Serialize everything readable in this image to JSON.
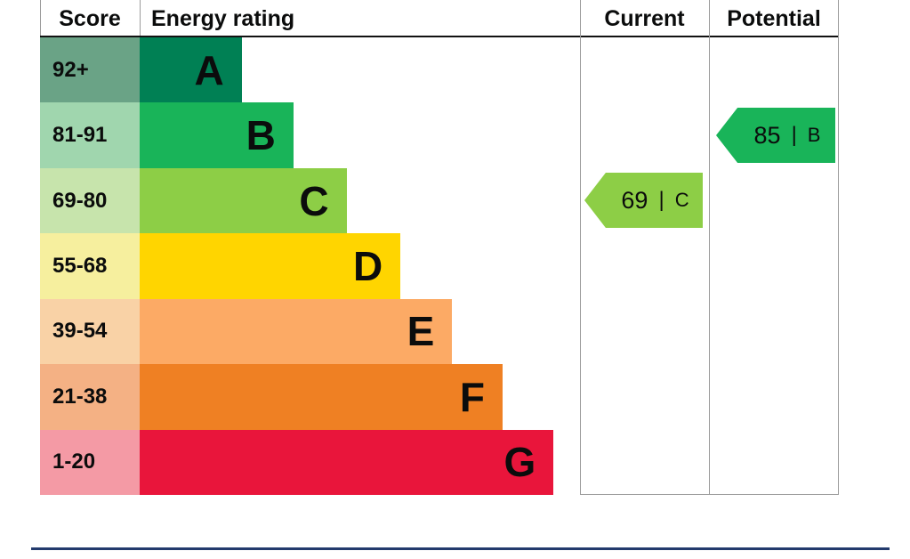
{
  "header": {
    "score": "Score",
    "rating": "Energy rating",
    "current": "Current",
    "potential": "Potential"
  },
  "bands": [
    {
      "score": "92+",
      "letter": "A",
      "color": "#008054",
      "score_bg": "#6aa386"
    },
    {
      "score": "81-91",
      "letter": "B",
      "color": "#19b459",
      "score_bg": "#a0d6ae"
    },
    {
      "score": "69-80",
      "letter": "C",
      "color": "#8dce46",
      "score_bg": "#c7e4ac"
    },
    {
      "score": "55-68",
      "letter": "D",
      "color": "#ffd500",
      "score_bg": "#f6ef9e"
    },
    {
      "score": "39-54",
      "letter": "E",
      "color": "#fcaa65",
      "score_bg": "#f9d2a6"
    },
    {
      "score": "21-38",
      "letter": "F",
      "color": "#ef8023",
      "score_bg": "#f4b184"
    },
    {
      "score": "1-20",
      "letter": "G",
      "color": "#e9153b",
      "score_bg": "#f49aa5"
    }
  ],
  "markers": {
    "separator": "|",
    "current": {
      "value": "69",
      "letter": "C",
      "color": "#8dce46"
    },
    "potential": {
      "value": "85",
      "letter": "B",
      "color": "#19b459"
    }
  },
  "divider_color": "#233a6d",
  "chart_data": {
    "type": "bar",
    "title": "Energy rating",
    "categories": [
      "A",
      "B",
      "C",
      "D",
      "E",
      "F",
      "G"
    ],
    "score_ranges": [
      "92+",
      "81-91",
      "69-80",
      "55-68",
      "39-54",
      "21-38",
      "1-20"
    ],
    "band_colors": [
      "#008054",
      "#19b459",
      "#8dce46",
      "#ffd500",
      "#fcaa65",
      "#ef8023",
      "#e9153b"
    ],
    "bar_relative_lengths": [
      0.146,
      0.22,
      0.296,
      0.373,
      0.447,
      0.519,
      0.592
    ],
    "current": {
      "score": 69,
      "band": "C"
    },
    "potential": {
      "score": 85,
      "band": "B"
    },
    "columns": [
      "Score",
      "Energy rating",
      "Current",
      "Potential"
    ],
    "legend_position": "none",
    "grid": false
  }
}
